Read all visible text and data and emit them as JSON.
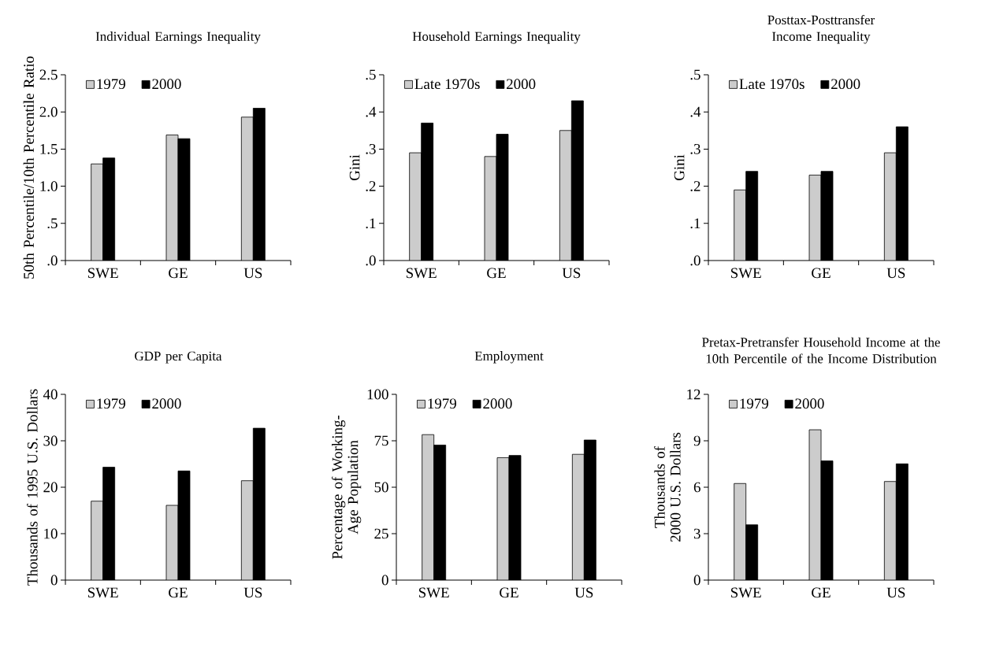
{
  "chart_data": [
    {
      "type": "bar",
      "title": "Individual Earnings Inequality",
      "ylabel": "50th Percentile/10th Percentile Ratio",
      "categories": [
        "SWE",
        "GE",
        "US"
      ],
      "series": [
        {
          "name": "1979",
          "color": "#cccccc",
          "values": [
            1.3,
            1.69,
            1.93
          ]
        },
        {
          "name": "2000",
          "color": "#000000",
          "values": [
            1.38,
            1.64,
            2.05
          ]
        }
      ],
      "ylim": [
        0,
        2.5
      ],
      "yticks": [
        {
          "value": 0,
          "label": ".0"
        },
        {
          "value": 0.5,
          "label": ".5"
        },
        {
          "value": 1,
          "label": "1.0"
        },
        {
          "value": 1.5,
          "label": "1.5"
        },
        {
          "value": 2,
          "label": "2.0"
        },
        {
          "value": 2.5,
          "label": "2.5"
        }
      ],
      "legend": "top left"
    },
    {
      "type": "bar",
      "title": "Household Earnings Inequality",
      "ylabel": "Gini",
      "categories": [
        "SWE",
        "GE",
        "US"
      ],
      "series": [
        {
          "name": "Late 1970s",
          "color": "#cccccc",
          "values": [
            0.29,
            0.28,
            0.35
          ]
        },
        {
          "name": "2000",
          "color": "#000000",
          "values": [
            0.37,
            0.34,
            0.43
          ]
        }
      ],
      "ylim": [
        0,
        0.5
      ],
      "yticks": [
        {
          "value": 0,
          "label": ".0"
        },
        {
          "value": 0.1,
          "label": ".1"
        },
        {
          "value": 0.2,
          "label": ".2"
        },
        {
          "value": 0.3,
          "label": ".3"
        },
        {
          "value": 0.4,
          "label": ".4"
        },
        {
          "value": 0.5,
          "label": ".5"
        }
      ],
      "legend": "top left"
    },
    {
      "type": "bar",
      "title": "Posttax-Posttransfer Income Inequality",
      "ylabel": "Gini",
      "categories": [
        "SWE",
        "GE",
        "US"
      ],
      "series": [
        {
          "name": "Late 1970s",
          "color": "#cccccc",
          "values": [
            0.19,
            0.23,
            0.29
          ]
        },
        {
          "name": "2000",
          "color": "#000000",
          "values": [
            0.24,
            0.24,
            0.36
          ]
        }
      ],
      "ylim": [
        0,
        0.5
      ],
      "yticks": [
        {
          "value": 0,
          "label": ".0"
        },
        {
          "value": 0.1,
          "label": ".1"
        },
        {
          "value": 0.2,
          "label": ".2"
        },
        {
          "value": 0.3,
          "label": ".3"
        },
        {
          "value": 0.4,
          "label": ".4"
        },
        {
          "value": 0.5,
          "label": ".5"
        }
      ],
      "legend": "top left"
    },
    {
      "type": "bar",
      "title": "GDP per Capita",
      "ylabel": "Thousands of 1995 U.S. Dollars",
      "categories": [
        "SWE",
        "GE",
        "US"
      ],
      "series": [
        {
          "name": "1979",
          "color": "#cccccc",
          "values": [
            17.0,
            16.1,
            21.4
          ]
        },
        {
          "name": "2000",
          "color": "#000000",
          "values": [
            24.3,
            23.5,
            32.7
          ]
        }
      ],
      "ylim": [
        0,
        40
      ],
      "yticks": [
        0,
        10,
        20,
        30,
        40
      ],
      "legend": "top left"
    },
    {
      "type": "bar",
      "title": "Employment",
      "ylabel": "Percentage of Working-Age Population",
      "categories": [
        "SWE",
        "GE",
        "US"
      ],
      "series": [
        {
          "name": "1979",
          "color": "#cccccc",
          "values": [
            78.3,
            65.9,
            67.7
          ]
        },
        {
          "name": "2000",
          "color": "#000000",
          "values": [
            72.7,
            67.1,
            75.4
          ]
        }
      ],
      "ylim": [
        0,
        100
      ],
      "yticks": [
        0,
        25,
        50,
        75,
        100
      ],
      "legend": "top left"
    },
    {
      "type": "bar",
      "title": "Pretax-Pretransfer Household Income at the 10th Percentile of the Income Distribution",
      "ylabel": "Thousands of 2000 U.S. Dollars",
      "categories": [
        "SWE",
        "GE",
        "US"
      ],
      "series": [
        {
          "name": "1979",
          "color": "#cccccc",
          "values": [
            6.24,
            9.71,
            6.37
          ]
        },
        {
          "name": "2000",
          "color": "#000000",
          "values": [
            3.57,
            7.7,
            7.51
          ]
        }
      ],
      "ylim": [
        0,
        12
      ],
      "yticks": [
        0,
        3,
        6,
        9,
        12
      ],
      "legend": "top left"
    }
  ]
}
